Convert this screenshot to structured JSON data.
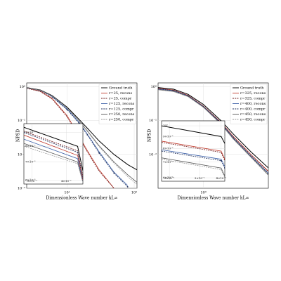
{
  "chart_data": [
    {
      "type": "line",
      "xlabel": "Dimensionless Wave number kL∞",
      "ylabel": "NPSD",
      "xscale": "log",
      "yscale": "log",
      "grid": true,
      "legend": "upper right",
      "xlim": [
        2.5,
        110
      ],
      "ylim": [
        0.001,
        1.3
      ],
      "xticks": [
        {
          "value": 10,
          "label": "10¹"
        },
        {
          "value": 100,
          "label": "10²"
        }
      ],
      "yticks": [
        {
          "value": 1,
          "label": "10⁰"
        },
        {
          "value": 0.1,
          "label": "10⁻¹"
        },
        {
          "value": 0.01,
          "label": "10⁻²"
        },
        {
          "value": 0.001,
          "label": "10⁻³"
        }
      ],
      "x": [
        2.5,
        4,
        6,
        10,
        15,
        20,
        30,
        50,
        80,
        110
      ],
      "series": [
        {
          "name": "Ground truth",
          "color": "#000000",
          "style": "solid",
          "values": [
            0.95,
            0.8,
            0.55,
            0.25,
            0.11,
            0.06,
            0.025,
            0.01,
            0.005,
            0.0035
          ]
        },
        {
          "name": "r=25, recons",
          "color": "#c0392b",
          "style": "solid",
          "values": [
            0.92,
            0.74,
            0.45,
            0.14,
            0.035,
            0.013,
            0.0035,
            0.001,
            null,
            null
          ]
        },
        {
          "name": "r=25, compr",
          "color": "#6e1a1a",
          "style": "dashed",
          "values": [
            0.9,
            0.72,
            0.43,
            0.13,
            0.033,
            0.012,
            0.0032,
            0.001,
            null,
            null
          ]
        },
        {
          "name": "r=125, recons",
          "color": "#3a5fa8",
          "style": "solid",
          "values": [
            0.93,
            0.78,
            0.52,
            0.22,
            0.09,
            0.04,
            0.012,
            0.003,
            0.0012,
            null
          ]
        },
        {
          "name": "r=125, compr",
          "color": "#1f2f5a",
          "style": "dashed-marker",
          "values": [
            0.92,
            0.77,
            0.5,
            0.21,
            0.085,
            0.038,
            0.011,
            0.0028,
            0.0011,
            null
          ]
        },
        {
          "name": "r=250, recons",
          "color": "#555555",
          "style": "solid",
          "values": [
            0.94,
            0.79,
            0.54,
            0.24,
            0.1,
            0.05,
            0.018,
            0.006,
            0.0025,
            0.0015
          ]
        },
        {
          "name": "r=250, compr",
          "color": "#999999",
          "style": "dashed",
          "values": [
            0.93,
            0.78,
            0.53,
            0.235,
            0.098,
            0.048,
            0.017,
            0.0055,
            0.0022,
            0.0013
          ]
        }
      ]
    },
    {
      "type": "line",
      "xlabel": "Dimensionless Wave number kL∞",
      "ylabel": "NPSD",
      "xscale": "log",
      "yscale": "log",
      "grid": true,
      "legend": "upper right",
      "xlim": [
        0.35,
        4.5
      ],
      "ylim": [
        0.001,
        1.3
      ],
      "xticks": [
        {
          "value": 1,
          "label": "10⁰"
        }
      ],
      "yticks": [
        {
          "value": 1,
          "label": "10⁰"
        },
        {
          "value": 0.1,
          "label": "10⁻¹"
        },
        {
          "value": 0.01,
          "label": "10⁻²"
        }
      ],
      "x": [
        0.35,
        0.5,
        0.7,
        1,
        1.5,
        2,
        3,
        4.5
      ],
      "series": [
        {
          "name": "Ground truth",
          "color": "#000000",
          "style": "solid",
          "values": [
            0.95,
            0.85,
            0.6,
            0.3,
            0.1,
            0.04,
            0.012,
            0.004
          ]
        },
        {
          "name": "r=325, recons",
          "color": "#c0392b",
          "style": "solid",
          "values": [
            0.9,
            0.8,
            0.56,
            0.27,
            0.09,
            0.034,
            0.01,
            0.0032
          ]
        },
        {
          "name": "r=325, compr",
          "color": "#6e1a1a",
          "style": "dashed",
          "values": [
            0.89,
            0.79,
            0.55,
            0.265,
            0.088,
            0.033,
            0.0098,
            0.0031
          ]
        },
        {
          "name": "r=400, recons",
          "color": "#3a5fa8",
          "style": "solid",
          "values": [
            0.86,
            0.77,
            0.54,
            0.26,
            0.085,
            0.031,
            0.009,
            0.0028
          ]
        },
        {
          "name": "r=400, compr",
          "color": "#1f2f5a",
          "style": "dashed-marker",
          "values": [
            0.85,
            0.76,
            0.53,
            0.255,
            0.083,
            0.03,
            0.0088,
            0.0027
          ]
        },
        {
          "name": "r=450, recons",
          "color": "#555555",
          "style": "solid",
          "values": [
            0.82,
            0.73,
            0.52,
            0.25,
            0.08,
            0.029,
            0.0085,
            0.0025
          ]
        },
        {
          "name": "r=450, compr",
          "color": "#999999",
          "style": "dashed",
          "values": [
            0.81,
            0.72,
            0.51,
            0.245,
            0.078,
            0.028,
            0.0082,
            0.0024
          ]
        }
      ]
    },
    {
      "type": "line",
      "xscale": "log",
      "yscale": "log",
      "grid": true,
      "xlim": [
        0.28,
        0.46
      ],
      "ylim": [
        0.58,
        0.97
      ],
      "xticks": [
        {
          "value": 0.3,
          "label": "3×10⁻¹"
        },
        {
          "value": 0.4,
          "label": "4×10⁻¹"
        }
      ],
      "yticks": [
        {
          "value": 0.9,
          "label": "9×10⁻¹"
        },
        {
          "value": 0.8,
          "label": "8×10⁻¹"
        },
        {
          "value": 0.7,
          "label": "7×10⁻¹"
        },
        {
          "value": 0.6,
          "label": "6×10⁻¹"
        }
      ],
      "x": [
        0.28,
        0.44,
        0.46
      ],
      "series": [
        {
          "color": "#000000",
          "style": "solid",
          "values": [
            0.94,
            0.8,
            0.65
          ]
        },
        {
          "color": "#c0392b",
          "style": "solid",
          "values": [
            0.88,
            0.74,
            0.6
          ]
        },
        {
          "color": "#6e1a1a",
          "style": "dashed",
          "values": [
            0.91,
            0.77,
            0.62
          ]
        },
        {
          "color": "#3a5fa8",
          "style": "solid",
          "values": [
            0.85,
            0.72,
            0.59
          ]
        },
        {
          "color": "#1f2f5a",
          "style": "dashed-marker",
          "values": [
            0.9,
            0.76,
            0.61
          ]
        },
        {
          "color": "#555555",
          "style": "solid",
          "values": [
            0.82,
            0.7,
            0.59
          ]
        },
        {
          "color": "#999999",
          "style": "dashed",
          "values": [
            0.8,
            0.69,
            0.59
          ]
        }
      ]
    },
    {
      "type": "line",
      "xscale": "log",
      "yscale": "log",
      "grid": true,
      "xlim": [
        0.18,
        0.42
      ],
      "ylim": [
        0.58,
        1.05
      ],
      "xticks": [
        {
          "value": 0.2,
          "label": "2×10⁻¹"
        },
        {
          "value": 0.3,
          "label": "3×10⁻¹"
        },
        {
          "value": 0.4,
          "label": "4×10⁻¹"
        }
      ],
      "yticks": [
        {
          "value": 1,
          "label": "10⁰"
        },
        {
          "value": 0.9,
          "label": "9×10⁻¹"
        },
        {
          "value": 0.8,
          "label": "8×10⁻¹"
        },
        {
          "value": 0.7,
          "label": "7×10⁻¹"
        },
        {
          "value": 0.6,
          "label": "6×10⁻¹"
        }
      ],
      "x": [
        0.18,
        0.4,
        0.42
      ],
      "series": [
        {
          "color": "#000000",
          "style": "solid",
          "values": [
            1.0,
            0.9,
            0.84
          ]
        },
        {
          "color": "#c0392b",
          "style": "solid",
          "values": [
            0.86,
            0.78,
            0.72
          ]
        },
        {
          "color": "#6e1a1a",
          "style": "dashed",
          "values": [
            0.85,
            0.77,
            0.71
          ]
        },
        {
          "color": "#3a5fa8",
          "style": "solid",
          "values": [
            0.79,
            0.72,
            0.67
          ]
        },
        {
          "color": "#1f2f5a",
          "style": "dashed-marker",
          "values": [
            0.78,
            0.71,
            0.66
          ]
        },
        {
          "color": "#555555",
          "style": "solid",
          "values": [
            0.73,
            0.66,
            0.61
          ]
        },
        {
          "color": "#999999",
          "style": "dashed",
          "values": [
            0.72,
            0.65,
            0.6
          ]
        }
      ]
    }
  ]
}
